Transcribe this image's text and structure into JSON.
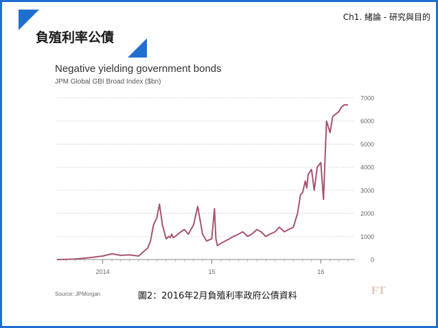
{
  "header": {
    "chapter": "Ch1. 緒論 - 研究與目的",
    "title": "負殖利率公債"
  },
  "caption": "圖2：2016年2月負殖利率政府公債資料",
  "source": "Source: JPMorgan",
  "logo": "FT",
  "colors": {
    "accent": "#1e6fd0",
    "line": "#a6536b",
    "grid": "#bdbdbd"
  },
  "chart_data": {
    "type": "line",
    "title": "Negative yielding government bonds",
    "subtitle": "JPM Global GBI Broad Index ($bn)",
    "xlabel": "",
    "ylabel": "",
    "xlim": [
      "2013-08-01",
      "2016-04-15"
    ],
    "ylim": [
      0,
      7000
    ],
    "yticks": [
      0,
      1000,
      2000,
      3000,
      4000,
      5000,
      6000,
      7000
    ],
    "xtick_labels": [
      {
        "label": "2014",
        "date": "2014-01-01"
      },
      {
        "label": "15",
        "date": "2015-01-01"
      },
      {
        "label": "16",
        "date": "2016-01-01"
      }
    ],
    "grid": true,
    "series": [
      {
        "x": [
          "2013-08-01",
          "2013-09-01",
          "2013-10-01",
          "2013-11-01",
          "2013-12-01",
          "2014-01-01",
          "2014-02-01",
          "2014-03-01",
          "2014-04-01",
          "2014-05-01",
          "2014-06-01",
          "2014-06-10",
          "2014-06-20",
          "2014-07-01",
          "2014-07-10",
          "2014-07-20",
          "2014-08-01",
          "2014-08-10",
          "2014-08-15",
          "2014-08-20",
          "2014-08-25",
          "2014-09-01",
          "2014-09-10",
          "2014-09-20",
          "2014-10-01",
          "2014-10-15",
          "2014-11-01",
          "2014-11-15",
          "2014-12-01",
          "2014-12-15",
          "2015-01-01",
          "2015-01-10",
          "2015-01-15",
          "2015-01-20",
          "2015-02-01",
          "2015-02-15",
          "2015-03-01",
          "2015-03-15",
          "2015-04-01",
          "2015-04-15",
          "2015-05-01",
          "2015-05-15",
          "2015-06-01",
          "2015-06-15",
          "2015-07-01",
          "2015-07-15",
          "2015-08-01",
          "2015-08-15",
          "2015-09-01",
          "2015-09-15",
          "2015-10-01",
          "2015-10-15",
          "2015-10-25",
          "2015-11-01",
          "2015-11-10",
          "2015-11-15",
          "2015-11-20",
          "2015-12-01",
          "2015-12-10",
          "2015-12-20",
          "2016-01-01",
          "2016-01-10",
          "2016-01-20",
          "2016-02-01",
          "2016-02-10",
          "2016-02-20",
          "2016-03-01",
          "2016-03-10",
          "2016-03-20",
          "2016-04-01"
        ],
        "values": [
          0,
          10,
          20,
          60,
          100,
          150,
          250,
          180,
          200,
          150,
          500,
          800,
          1500,
          1800,
          2400,
          1500,
          900,
          1000,
          950,
          1100,
          950,
          1000,
          1100,
          1200,
          1300,
          1100,
          1500,
          2300,
          1100,
          800,
          900,
          2200,
          900,
          600,
          700,
          800,
          900,
          1000,
          1100,
          1200,
          1000,
          1100,
          1300,
          1200,
          1000,
          1100,
          1200,
          1400,
          1200,
          1300,
          1400,
          2000,
          2800,
          2900,
          3400,
          3100,
          3700,
          3900,
          3000,
          4000,
          4200,
          2600,
          6000,
          5500,
          6200,
          6300,
          6400,
          6600,
          6700,
          6700
        ]
      }
    ]
  }
}
